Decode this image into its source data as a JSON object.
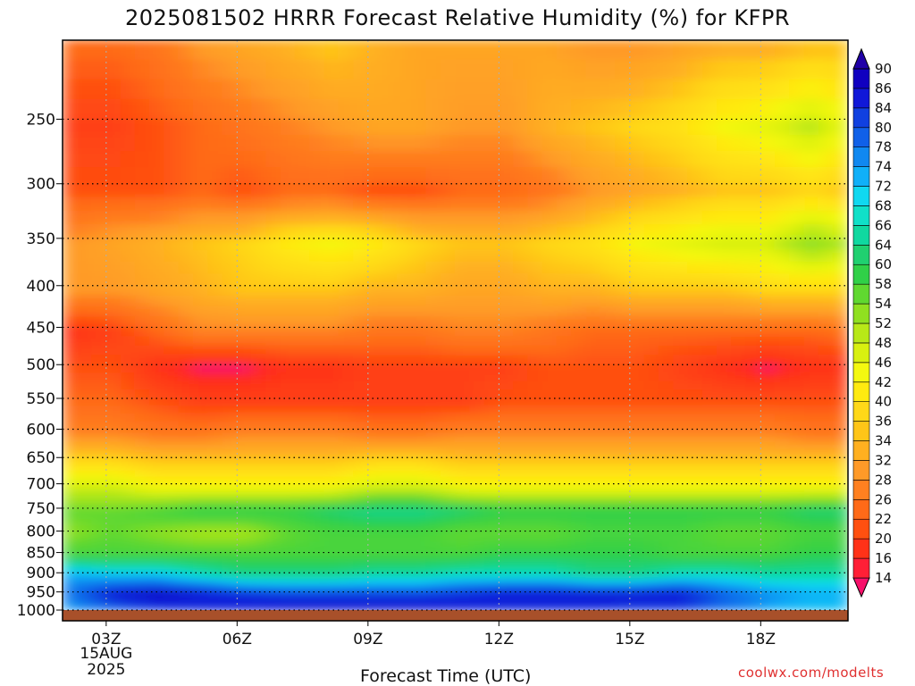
{
  "title": "2025081502 HRRR Forecast Relative Humidity (%) for KFPR",
  "credit": "coolwx.com/modelts",
  "chart_data": {
    "type": "heatmap",
    "title": "2025081502 HRRR Forecast Relative Humidity (%) for KFPR",
    "xlabel": "Forecast Time (UTC)",
    "ylabel": "",
    "x_ticks": [
      "03Z",
      "06Z",
      "09Z",
      "12Z",
      "15Z",
      "18Z"
    ],
    "x_date_label": [
      "15AUG",
      "2025"
    ],
    "x_hours": [
      2,
      3,
      4,
      5,
      6,
      7,
      8,
      9,
      10,
      11,
      12,
      13,
      14,
      15,
      16,
      17,
      18,
      19,
      20
    ],
    "x_range": [
      2,
      20
    ],
    "y_ticks": [
      250,
      300,
      350,
      400,
      450,
      500,
      550,
      600,
      650,
      700,
      750,
      800,
      850,
      900,
      950,
      1000
    ],
    "y_log_scale": true,
    "y_range_hPa": [
      200,
      1000
    ],
    "grid": true,
    "colorbar": {
      "levels": [
        14,
        16,
        20,
        22,
        26,
        28,
        32,
        34,
        36,
        40,
        42,
        46,
        48,
        52,
        54,
        58,
        60,
        64,
        66,
        68,
        72,
        74,
        78,
        80,
        84,
        86,
        90
      ],
      "colors": [
        "#f8106a",
        "#ff1f36",
        "#ff3218",
        "#ff5010",
        "#ff6a18",
        "#ff8020",
        "#ff9a28",
        "#ffb020",
        "#ffc518",
        "#ffd818",
        "#ffea10",
        "#f4f810",
        "#d8f010",
        "#b8e818",
        "#90e020",
        "#60d830",
        "#30d048",
        "#20d070",
        "#10d8a0",
        "#10e0c8",
        "#10d8f0",
        "#10b0f8",
        "#1088f0",
        "#1060e8",
        "#1040e0",
        "#1018d8",
        "#1000c0",
        "#2000a8"
      ]
    },
    "pressure_levels_hPa": [
      200,
      250,
      300,
      350,
      400,
      450,
      500,
      550,
      600,
      650,
      700,
      750,
      800,
      850,
      900,
      950,
      1000
    ],
    "values": [
      [
        22,
        22,
        24,
        28,
        30,
        32,
        34,
        32,
        30,
        30,
        30,
        30,
        28,
        28,
        30,
        32,
        32,
        34,
        34
      ],
      [
        18,
        18,
        20,
        22,
        24,
        26,
        28,
        30,
        30,
        28,
        28,
        32,
        34,
        36,
        38,
        42,
        44,
        48,
        42
      ],
      [
        20,
        20,
        20,
        22,
        20,
        22,
        22,
        20,
        20,
        22,
        22,
        24,
        28,
        30,
        32,
        34,
        34,
        36,
        34
      ],
      [
        28,
        30,
        32,
        34,
        36,
        40,
        42,
        40,
        36,
        34,
        34,
        36,
        38,
        42,
        44,
        46,
        46,
        52,
        48
      ],
      [
        28,
        28,
        30,
        32,
        34,
        34,
        34,
        32,
        32,
        30,
        30,
        32,
        32,
        34,
        34,
        34,
        36,
        36,
        36
      ],
      [
        16,
        18,
        22,
        26,
        26,
        26,
        26,
        24,
        24,
        26,
        26,
        24,
        22,
        22,
        22,
        22,
        22,
        22,
        24
      ],
      [
        20,
        20,
        16,
        14,
        14,
        16,
        16,
        18,
        18,
        18,
        18,
        20,
        20,
        20,
        18,
        16,
        14,
        16,
        16
      ],
      [
        22,
        22,
        20,
        18,
        18,
        18,
        18,
        18,
        18,
        18,
        20,
        20,
        20,
        20,
        20,
        20,
        20,
        20,
        20
      ],
      [
        26,
        26,
        24,
        24,
        26,
        26,
        26,
        24,
        24,
        26,
        26,
        26,
        26,
        26,
        26,
        26,
        26,
        24,
        24
      ],
      [
        36,
        36,
        34,
        34,
        34,
        34,
        34,
        36,
        36,
        34,
        34,
        34,
        34,
        34,
        34,
        34,
        34,
        34,
        34
      ],
      [
        46,
        46,
        42,
        42,
        42,
        42,
        42,
        46,
        46,
        42,
        42,
        42,
        42,
        42,
        42,
        42,
        42,
        42,
        42
      ],
      [
        54,
        54,
        56,
        58,
        58,
        58,
        60,
        62,
        62,
        60,
        58,
        58,
        58,
        58,
        58,
        58,
        58,
        60,
        60
      ],
      [
        52,
        54,
        52,
        50,
        50,
        54,
        56,
        56,
        56,
        54,
        54,
        54,
        56,
        56,
        56,
        54,
        54,
        56,
        56
      ],
      [
        56,
        56,
        56,
        56,
        56,
        56,
        56,
        56,
        56,
        56,
        58,
        58,
        58,
        58,
        56,
        56,
        56,
        58,
        58
      ],
      [
        72,
        70,
        70,
        66,
        62,
        62,
        62,
        64,
        64,
        66,
        66,
        66,
        62,
        62,
        66,
        66,
        64,
        64,
        64
      ],
      [
        76,
        84,
        86,
        84,
        82,
        80,
        80,
        80,
        80,
        82,
        84,
        84,
        84,
        84,
        84,
        78,
        74,
        72,
        72
      ],
      [
        72,
        76,
        80,
        82,
        84,
        86,
        86,
        86,
        86,
        84,
        82,
        82,
        82,
        80,
        80,
        76,
        72,
        70,
        70
      ]
    ]
  }
}
